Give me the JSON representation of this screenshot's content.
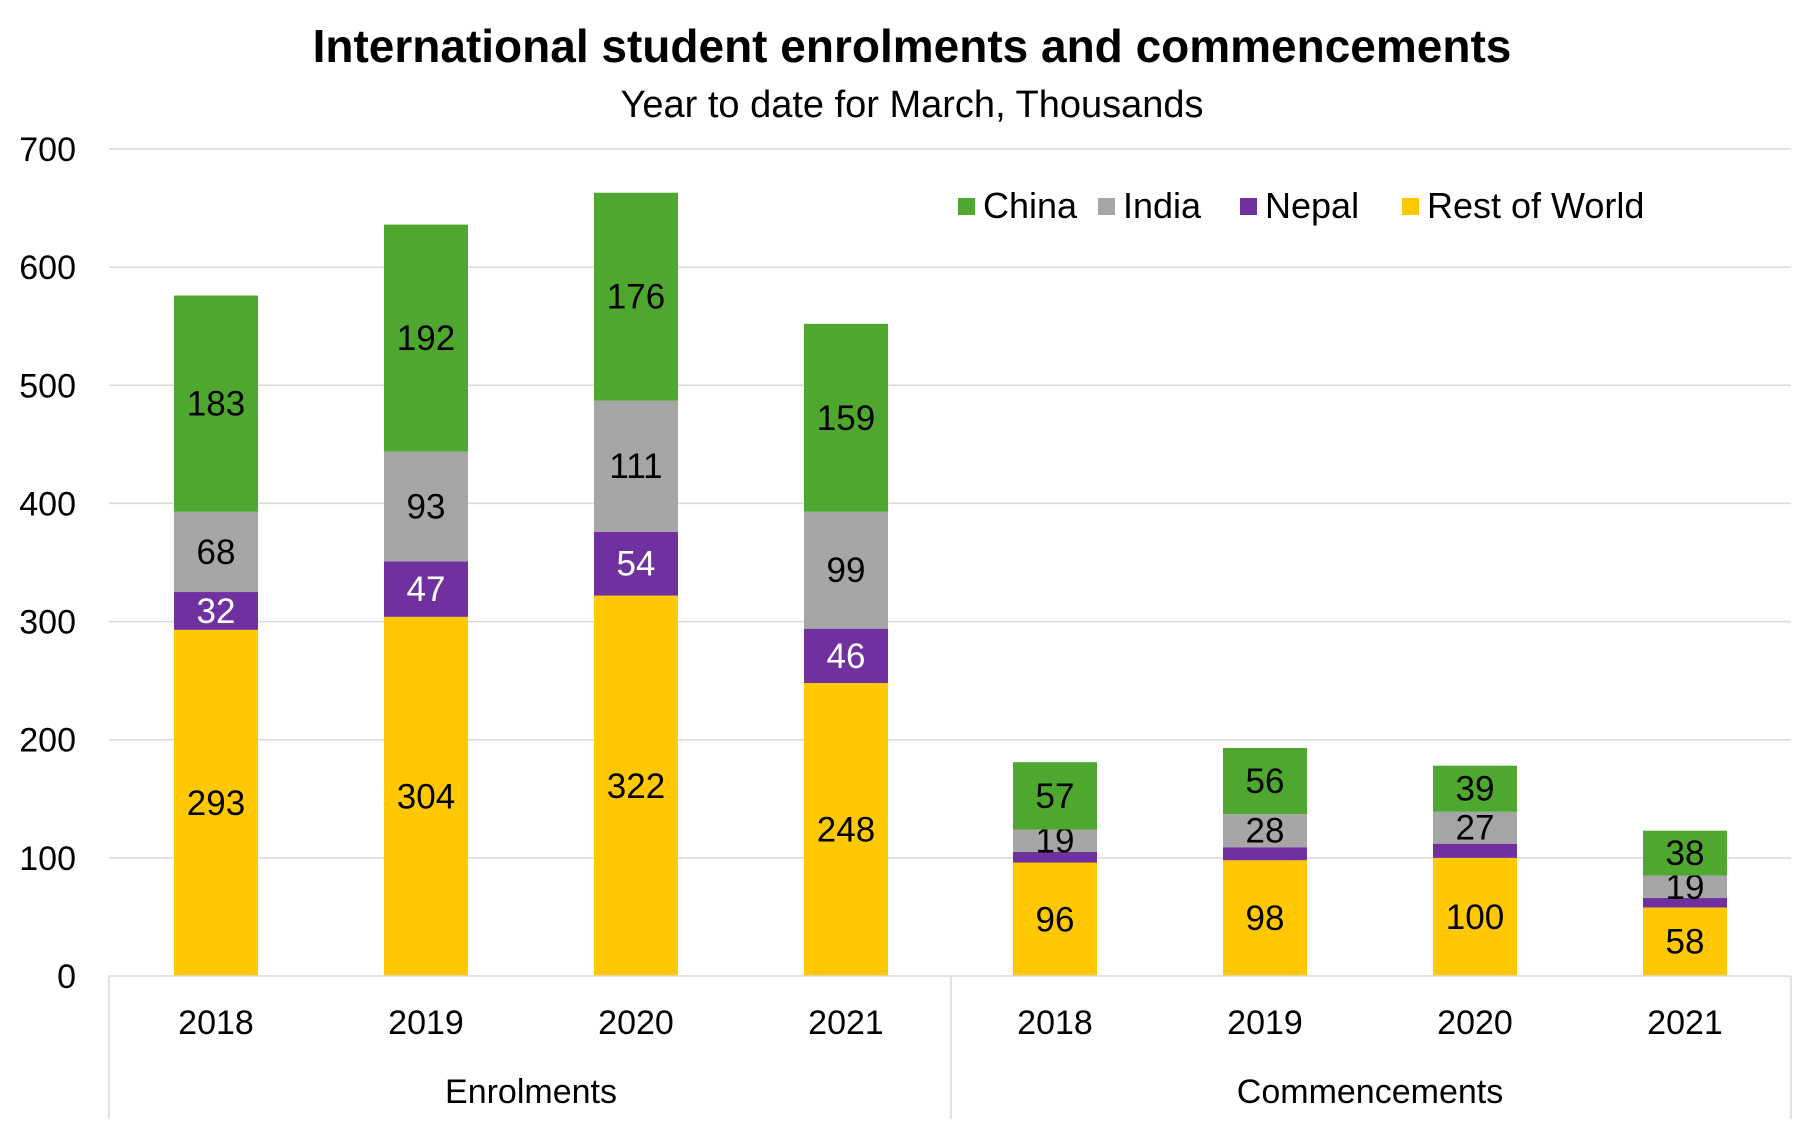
{
  "chart_data": {
    "type": "bar",
    "stacked": true,
    "title": "International student enrolments and commencements",
    "subtitle": "Year to date for March, Thousands",
    "ylim": [
      0,
      700
    ],
    "yticks": [
      "0",
      "100",
      "200",
      "300",
      "400",
      "500",
      "600",
      "700"
    ],
    "grid": true,
    "legend_position": "top-right",
    "groups": [
      {
        "label": "Enrolments",
        "categories": [
          "2018",
          "2019",
          "2020",
          "2021"
        ]
      },
      {
        "label": "Commencements",
        "categories": [
          "2018",
          "2019",
          "2020",
          "2021"
        ]
      }
    ],
    "series": [
      {
        "name": "Rest of World",
        "color": "#FFC800",
        "values": [
          293,
          304,
          322,
          248,
          96,
          98,
          100,
          58
        ],
        "label_color": "#000000"
      },
      {
        "name": "Nepal",
        "color": "#7030A0",
        "values": [
          32,
          47,
          54,
          46,
          9,
          11,
          12,
          8
        ],
        "label_color": "#FFFFFF",
        "labels_shown": [
          true,
          true,
          true,
          true,
          false,
          false,
          false,
          false
        ]
      },
      {
        "name": "India",
        "color": "#A6A6A6",
        "values": [
          68,
          93,
          111,
          99,
          19,
          28,
          27,
          19
        ],
        "label_color": "#000000"
      },
      {
        "name": "China",
        "color": "#4EA72E",
        "values": [
          183,
          192,
          176,
          159,
          57,
          56,
          39,
          38
        ],
        "label_color": "#000000"
      }
    ],
    "legend_order": [
      "China",
      "India",
      "Nepal",
      "Rest of World"
    ]
  }
}
